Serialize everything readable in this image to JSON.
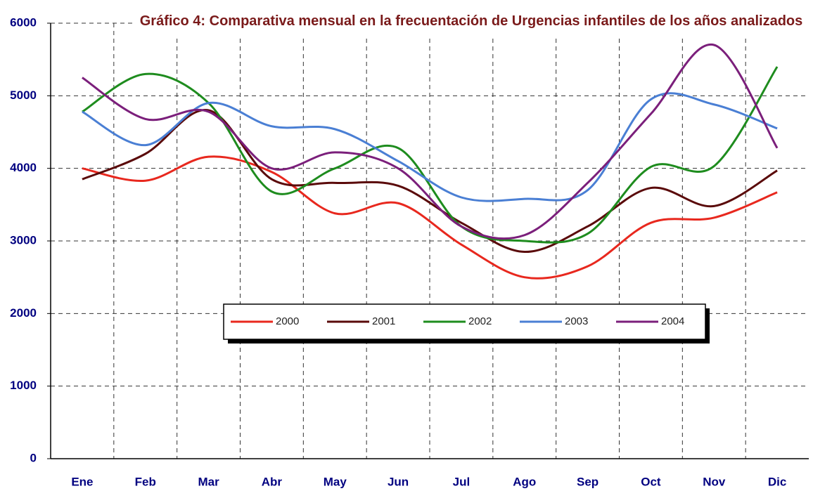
{
  "chart_data": {
    "type": "line",
    "title": "Gráfico 4: Comparativa mensual en la frecuentación de Urgencias infantiles de los años analizados",
    "categories": [
      "Ene",
      "Feb",
      "Mar",
      "Abr",
      "May",
      "Jun",
      "Jul",
      "Ago",
      "Sep",
      "Oct",
      "Nov",
      "Dic"
    ],
    "series": [
      {
        "name": "2000",
        "color": "#e8281e",
        "values": [
          4000,
          3830,
          4160,
          3950,
          3380,
          3520,
          2950,
          2500,
          2650,
          3250,
          3320,
          3670
        ]
      },
      {
        "name": "2001",
        "color": "#5a0a0a",
        "values": [
          3850,
          4200,
          4800,
          3850,
          3800,
          3760,
          3250,
          2850,
          3200,
          3730,
          3480,
          3970
        ]
      },
      {
        "name": "2002",
        "color": "#1e8c1e",
        "values": [
          4780,
          5300,
          4900,
          3680,
          4000,
          4280,
          3200,
          3000,
          3100,
          4020,
          4030,
          5400
        ]
      },
      {
        "name": "2003",
        "color": "#4a7fd4",
        "values": [
          4780,
          4320,
          4900,
          4580,
          4540,
          4100,
          3600,
          3580,
          3700,
          4950,
          4880,
          4550
        ]
      },
      {
        "name": "2004",
        "color": "#7b1f7b",
        "values": [
          5250,
          4680,
          4780,
          4000,
          4220,
          4000,
          3200,
          3080,
          3800,
          4750,
          5700,
          4280
        ]
      }
    ],
    "ylim": [
      0,
      6000
    ],
    "yticks": [
      0,
      1000,
      2000,
      3000,
      4000,
      5000,
      6000
    ],
    "grid": true,
    "legend": "center"
  }
}
